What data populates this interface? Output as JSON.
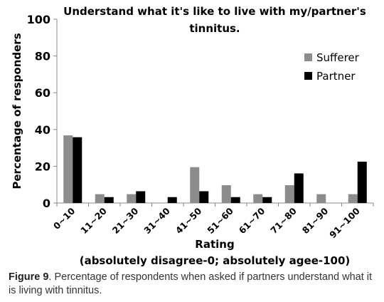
{
  "chart_data": {
    "type": "bar",
    "title_line1": "Understand what it's like to live with my/partner's",
    "title_line2": "tinnitus.",
    "ylabel": "Percentage of responders",
    "xlabel_line1": "Rating",
    "xlabel_line2": "(absolutely disagree-0; absolutely agee-100)",
    "ylim": [
      0,
      100
    ],
    "yticks": [
      0,
      20,
      40,
      60,
      80,
      100
    ],
    "categories": [
      "0~10",
      "11~20",
      "21~30",
      "31~40",
      "41~50",
      "51~60",
      "61~70",
      "71~80",
      "81~90",
      "91~100"
    ],
    "series": [
      {
        "name": "Sufferer",
        "color": "#8c8c8c",
        "values": [
          36.8,
          4.8,
          4.8,
          0,
          19.5,
          9.7,
          4.8,
          9.7,
          4.8,
          4.8
        ]
      },
      {
        "name": "Partner",
        "color": "#000000",
        "values": [
          35.8,
          3.2,
          6.4,
          3.2,
          6.4,
          3.2,
          3.2,
          16.1,
          0,
          22.5
        ]
      }
    ],
    "legend_position": "top-right",
    "grid": false
  },
  "caption": {
    "label": "Figure 9",
    "text": ". Percentage of respondents when asked if partners understand what it is living with tinnitus."
  }
}
